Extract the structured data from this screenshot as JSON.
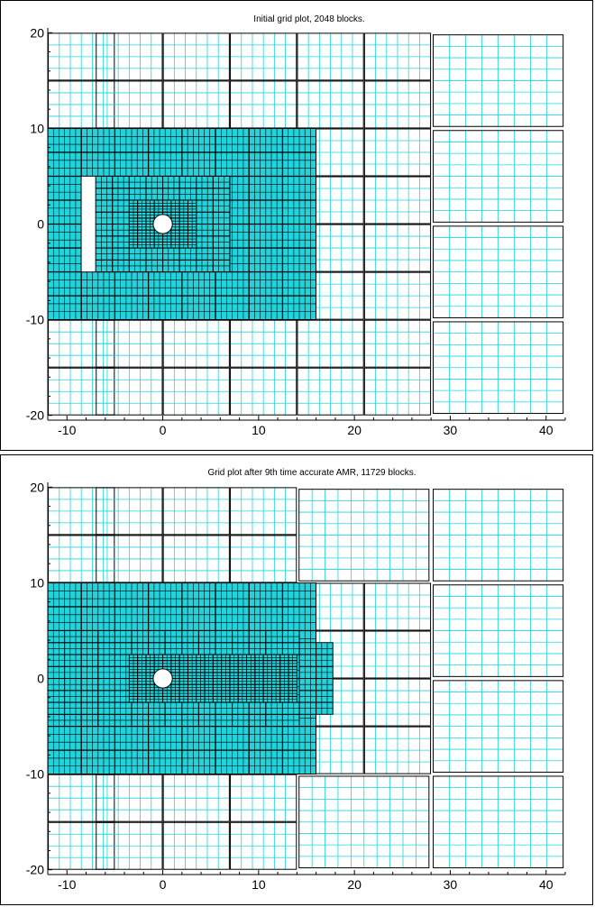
{
  "chart_data": [
    {
      "type": "grid",
      "title": "Initial grid plot, 2048 blocks.",
      "xlim": [
        -12,
        42
      ],
      "ylim": [
        -20.5,
        20.5
      ],
      "xticks": [
        -10,
        0,
        10,
        20,
        30,
        40
      ],
      "xtick_labels": [
        "-10",
        "0",
        "10",
        "20",
        "30",
        "40"
      ],
      "yticks": [
        20,
        10,
        0,
        -10,
        -20
      ],
      "ytick_labels": [
        "20",
        "10",
        "0",
        "-10",
        "-20"
      ],
      "obstacle": {
        "shape": "circle",
        "cx": 0,
        "cy": 0,
        "r": 1
      },
      "colors": {
        "cell_line": "#22d3dc",
        "block_outline": "#000000",
        "fill": "#22d3dc"
      }
    },
    {
      "type": "grid",
      "title": "Grid plot after 9th time accurate AMR, 11729 blocks.",
      "xlim": [
        -12,
        42
      ],
      "ylim": [
        -20.5,
        20.5
      ],
      "xticks": [
        -10,
        0,
        10,
        20,
        30,
        40
      ],
      "xtick_labels": [
        "-10",
        "0",
        "10",
        "20",
        "30",
        "40"
      ],
      "yticks": [
        20,
        10,
        0,
        -10,
        -20
      ],
      "ytick_labels": [
        "20",
        "10",
        "0",
        "-10",
        "-20"
      ],
      "obstacle": {
        "shape": "circle",
        "cx": 0,
        "cy": 0,
        "r": 1
      },
      "colors": {
        "cell_line": "#22d3dc",
        "block_outline": "#000000",
        "fill": "#22d3dc"
      }
    }
  ]
}
